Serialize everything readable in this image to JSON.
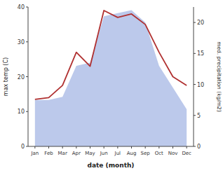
{
  "chart_data": {
    "type": "line",
    "xlabel": "date (month)",
    "ylabel": "max temp (C)",
    "y2label": "med. precipitation (kg/m2)",
    "categories": [
      "Jan",
      "Feb",
      "Mar",
      "Apr",
      "May",
      "Jun",
      "Jul",
      "Aug",
      "Sep",
      "Oct",
      "Nov",
      "Dec"
    ],
    "series": [
      {
        "type": "area",
        "axis": "y2",
        "color": "#b0c0e8",
        "values": [
          7.5,
          7.5,
          8.0,
          13.0,
          13.5,
          21.0,
          21.5,
          22.0,
          20.0,
          13.0,
          9.5,
          6.0
        ]
      },
      {
        "type": "line",
        "color": "#b03030",
        "values": [
          13.5,
          14.0,
          17.5,
          27.0,
          23.0,
          39.0,
          37.0,
          38.0,
          35.0,
          27.0,
          20.0,
          17.5
        ]
      }
    ],
    "ylim": [
      0,
      40
    ],
    "yticks": [
      0,
      10,
      20,
      30,
      40
    ],
    "y2lim": [
      0,
      22.5
    ],
    "y2ticks": [
      0,
      5,
      10,
      15,
      20
    ]
  }
}
